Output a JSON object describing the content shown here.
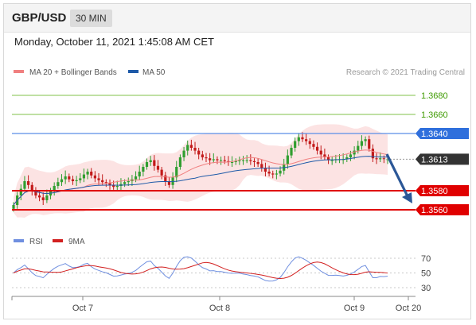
{
  "header": {
    "symbol": "GBP/USD",
    "timeframe": "30 MIN"
  },
  "timestamp": "Monday, October 11, 2021 1:45:08 AM CET",
  "copyright": "Research © 2021 Trading Central",
  "colors": {
    "ma20": "#f08080",
    "ma50": "#1e5aa8",
    "resistance": "#5a8ee8",
    "support": "#e00000",
    "target": "#9acd6e",
    "last": "#333333",
    "rsi": "#6f8fe0",
    "rsi_ma": "#d22020",
    "arrow": "#2b5797"
  },
  "chart_data": [
    {
      "type": "candlestick",
      "legend": [
        {
          "name": "MA 20 + Bollinger Bands",
          "color": "#f08080"
        },
        {
          "name": "MA 50",
          "color": "#1e5aa8"
        }
      ],
      "x_ticks": [
        "Oct 7",
        "Oct 8",
        "Oct 9",
        "Oct 20"
      ],
      "ylim": [
        1.3545,
        1.3695
      ],
      "levels": [
        {
          "value": 1.368,
          "label": "1.3680",
          "kind": "target"
        },
        {
          "value": 1.366,
          "label": "1.3660",
          "kind": "target"
        },
        {
          "value": 1.364,
          "label": "1.3640",
          "kind": "resistance"
        },
        {
          "value": 1.3613,
          "label": "1.3613",
          "kind": "last"
        },
        {
          "value": 1.358,
          "label": "1.3580",
          "kind": "support"
        },
        {
          "value": 1.356,
          "label": "1.3560",
          "kind": "support"
        }
      ],
      "close": [
        1.3565,
        1.3575,
        1.3582,
        1.359,
        1.3586,
        1.358,
        1.3575,
        1.3573,
        1.357,
        1.3575,
        1.358,
        1.3585,
        1.3589,
        1.3592,
        1.3595,
        1.3592,
        1.359,
        1.3591,
        1.3593,
        1.3597,
        1.36,
        1.3596,
        1.3593,
        1.3591,
        1.3589,
        1.3588,
        1.3586,
        1.3584,
        1.3585,
        1.3587,
        1.3589,
        1.359,
        1.3592,
        1.3595,
        1.36,
        1.3605,
        1.361,
        1.3612,
        1.3606,
        1.3602,
        1.3596,
        1.359,
        1.3586,
        1.3594,
        1.3605,
        1.3615,
        1.3622,
        1.3628,
        1.3625,
        1.3622,
        1.3618,
        1.3615,
        1.3614,
        1.3612,
        1.3613,
        1.3612,
        1.3612,
        1.3611,
        1.361,
        1.361,
        1.3611,
        1.3612,
        1.3612,
        1.3612,
        1.3611,
        1.361,
        1.3608,
        1.3604,
        1.36,
        1.3598,
        1.3597,
        1.3598,
        1.3601,
        1.3608,
        1.3617,
        1.3625,
        1.3632,
        1.3636,
        1.3634,
        1.3632,
        1.3629,
        1.3626,
        1.3622,
        1.3618,
        1.3615,
        1.3612,
        1.3612,
        1.3613,
        1.3613,
        1.3613,
        1.3615,
        1.3618,
        1.3622,
        1.3627,
        1.3632,
        1.3634,
        1.3624,
        1.3614,
        1.3613,
        1.3614,
        1.3613,
        1.3613
      ]
    },
    {
      "type": "line",
      "series": [
        {
          "name": "RSI",
          "color": "#6f8fe0"
        },
        {
          "name": "9MA",
          "color": "#d22020"
        }
      ],
      "levels": [
        70,
        50,
        30
      ],
      "ylim": [
        20,
        80
      ]
    }
  ]
}
